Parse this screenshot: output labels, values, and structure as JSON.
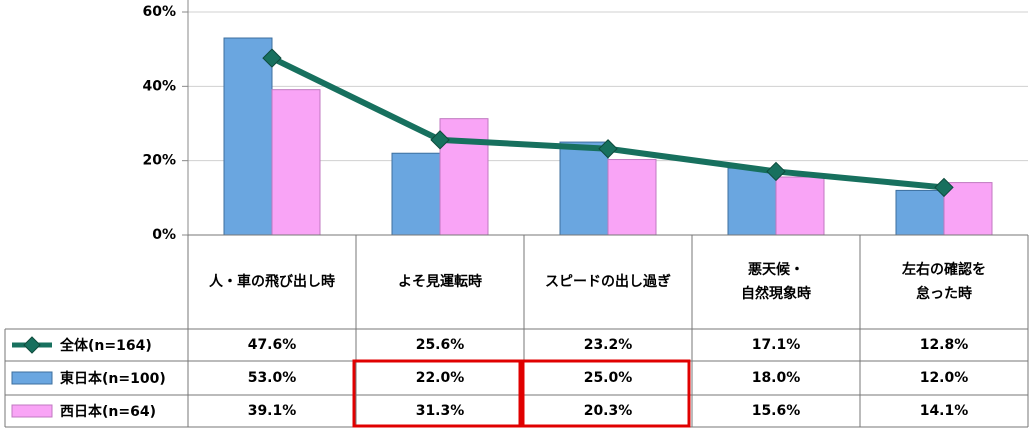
{
  "chart_data": {
    "type": "bar_line_table",
    "categories": [
      "人・車の飛び出し時",
      "よそ見運転時",
      "スピードの出し過ぎ",
      "悪天候・\n自然現象時",
      "左右の確認を\n怠った時"
    ],
    "series": [
      {
        "name": "全体(n=164)",
        "type": "line",
        "color": "#17705e",
        "values": [
          47.6,
          25.6,
          23.2,
          17.1,
          12.8
        ],
        "value_labels": [
          "47.6%",
          "25.6%",
          "23.2%",
          "17.1%",
          "12.8%"
        ]
      },
      {
        "name": "東日本(n=100)",
        "type": "bar",
        "color": "#6aa6e0",
        "values": [
          53.0,
          22.0,
          25.0,
          18.0,
          12.0
        ],
        "value_labels": [
          "53.0%",
          "22.0%",
          "25.0%",
          "18.0%",
          "12.0%"
        ]
      },
      {
        "name": "西日本(n=64)",
        "type": "bar",
        "color": "#f9a4f6",
        "values": [
          39.1,
          31.3,
          20.3,
          15.6,
          14.1
        ],
        "value_labels": [
          "39.1%",
          "31.3%",
          "20.3%",
          "15.6%",
          "14.1%"
        ]
      }
    ],
    "ylim": [
      0,
      60
    ],
    "yticks": [
      {
        "value": 0,
        "label": "0%"
      },
      {
        "value": 20,
        "label": "20%"
      },
      {
        "value": 40,
        "label": "40%"
      },
      {
        "value": 60,
        "label": "60%"
      }
    ],
    "grid": true
  }
}
